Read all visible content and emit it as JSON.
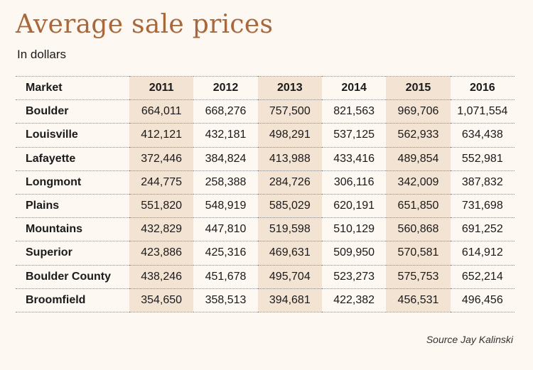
{
  "title": "Average sale prices",
  "subtitle": "In dollars",
  "source": "Source Jay Kalinski",
  "chart_data": {
    "type": "table",
    "title": "Average sale prices",
    "unit_note": "In dollars",
    "columns": [
      "Market",
      "2011",
      "2012",
      "2013",
      "2014",
      "2015",
      "2016"
    ],
    "rows": [
      [
        "Boulder",
        "664,011",
        "668,276",
        "757,500",
        "821,563",
        "969,706",
        "1,071,554"
      ],
      [
        "Louisville",
        "412,121",
        "432,181",
        "498,291",
        "537,125",
        "562,933",
        "634,438"
      ],
      [
        "Lafayette",
        "372,446",
        "384,824",
        "413,988",
        "433,416",
        "489,854",
        "552,981"
      ],
      [
        "Longmont",
        "244,775",
        "258,388",
        "284,726",
        "306,116",
        "342,009",
        "387,832"
      ],
      [
        "Plains",
        "551,820",
        "548,919",
        "585,029",
        "620,191",
        "651,850",
        "731,698"
      ],
      [
        "Mountains",
        "432,829",
        "447,810",
        "519,598",
        "510,129",
        "560,868",
        "691,252"
      ],
      [
        "Superior",
        "423,886",
        "425,316",
        "469,631",
        "509,950",
        "570,581",
        "614,912"
      ],
      [
        "Boulder County",
        "438,246",
        "451,678",
        "495,704",
        "523,273",
        "575,753",
        "652,214"
      ],
      [
        "Broomfield",
        "354,650",
        "358,513",
        "394,681",
        "422,382",
        "456,531",
        "496,456"
      ]
    ],
    "colors": {
      "title": "#a8683c",
      "shaded_column": "#f3e3d3",
      "background": "#fdf8f2"
    }
  }
}
